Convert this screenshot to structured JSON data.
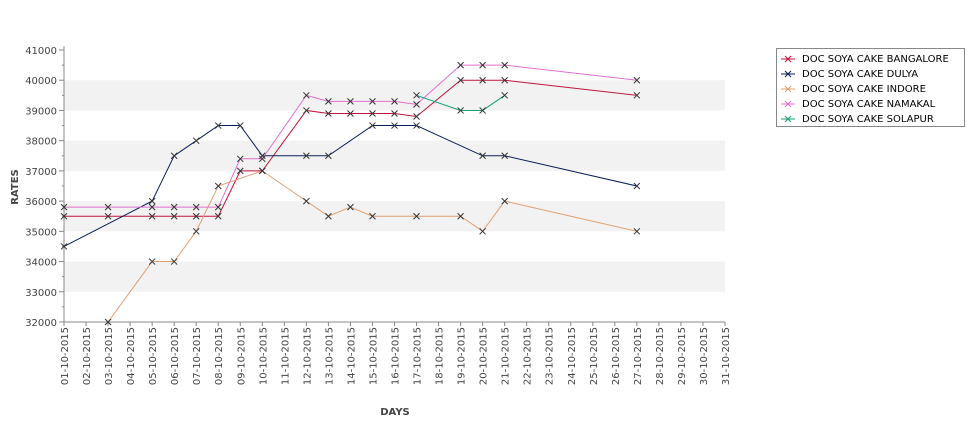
{
  "chart_data": {
    "type": "line",
    "xlabel": "DAYS",
    "ylabel": "RATES",
    "ylim": [
      32000,
      41000
    ],
    "yticks": [
      32000,
      33000,
      34000,
      35000,
      36000,
      37000,
      38000,
      39000,
      40000,
      41000
    ],
    "categories": [
      "01-10-2015",
      "02-10-2015",
      "03-10-2015",
      "04-10-2015",
      "05-10-2015",
      "06-10-2015",
      "07-10-2015",
      "08-10-2015",
      "09-10-2015",
      "10-10-2015",
      "11-10-2015",
      "12-10-2015",
      "13-10-2015",
      "14-10-2015",
      "15-10-2015",
      "16-10-2015",
      "17-10-2015",
      "18-10-2015",
      "19-10-2015",
      "20-10-2015",
      "21-10-2015",
      "22-10-2015",
      "23-10-2015",
      "24-10-2015",
      "25-10-2015",
      "26-10-2015",
      "27-10-2015",
      "28-10-2015",
      "29-10-2015",
      "30-10-2015",
      "31-10-2015"
    ],
    "grid": "horizontal alternating bands",
    "legend_position": "right",
    "marker": "x",
    "series": [
      {
        "name": "DOC SOYA CAKE BANGALORE",
        "color": "#c0143c",
        "points": [
          [
            "01-10-2015",
            35500
          ],
          [
            "03-10-2015",
            35500
          ],
          [
            "05-10-2015",
            35500
          ],
          [
            "06-10-2015",
            35500
          ],
          [
            "07-10-2015",
            35500
          ],
          [
            "08-10-2015",
            35500
          ],
          [
            "09-10-2015",
            37000
          ],
          [
            "10-10-2015",
            37000
          ],
          [
            "12-10-2015",
            39000
          ],
          [
            "13-10-2015",
            38900
          ],
          [
            "14-10-2015",
            38900
          ],
          [
            "15-10-2015",
            38900
          ],
          [
            "16-10-2015",
            38900
          ],
          [
            "17-10-2015",
            38800
          ],
          [
            "19-10-2015",
            40000
          ],
          [
            "20-10-2015",
            40000
          ],
          [
            "21-10-2015",
            40000
          ],
          [
            "27-10-2015",
            39500
          ]
        ]
      },
      {
        "name": "DOC SOYA CAKE DULYA",
        "color": "#0a1f55",
        "points": [
          [
            "01-10-2015",
            34500
          ],
          [
            "05-10-2015",
            36000
          ],
          [
            "06-10-2015",
            37500
          ],
          [
            "07-10-2015",
            38000
          ],
          [
            "08-10-2015",
            38500
          ],
          [
            "09-10-2015",
            38500
          ],
          [
            "10-10-2015",
            37500
          ],
          [
            "12-10-2015",
            37500
          ],
          [
            "13-10-2015",
            37500
          ],
          [
            "15-10-2015",
            38500
          ],
          [
            "16-10-2015",
            38500
          ],
          [
            "17-10-2015",
            38500
          ],
          [
            "20-10-2015",
            37500
          ],
          [
            "21-10-2015",
            37500
          ],
          [
            "27-10-2015",
            36500
          ]
        ]
      },
      {
        "name": "DOC SOYA CAKE INDORE",
        "color": "#e0a070",
        "points": [
          [
            "03-10-2015",
            32000
          ],
          [
            "05-10-2015",
            34000
          ],
          [
            "06-10-2015",
            34000
          ],
          [
            "07-10-2015",
            35000
          ],
          [
            "08-10-2015",
            36500
          ],
          [
            "10-10-2015",
            37000
          ],
          [
            "12-10-2015",
            36000
          ],
          [
            "13-10-2015",
            35500
          ],
          [
            "14-10-2015",
            35800
          ],
          [
            "15-10-2015",
            35500
          ],
          [
            "17-10-2015",
            35500
          ],
          [
            "19-10-2015",
            35500
          ],
          [
            "20-10-2015",
            35000
          ],
          [
            "21-10-2015",
            36000
          ],
          [
            "27-10-2015",
            35000
          ]
        ]
      },
      {
        "name": "DOC SOYA CAKE NAMAKAL",
        "color": "#e070d0",
        "points": [
          [
            "01-10-2015",
            35800
          ],
          [
            "03-10-2015",
            35800
          ],
          [
            "05-10-2015",
            35800
          ],
          [
            "06-10-2015",
            35800
          ],
          [
            "07-10-2015",
            35800
          ],
          [
            "08-10-2015",
            35800
          ],
          [
            "09-10-2015",
            37400
          ],
          [
            "10-10-2015",
            37400
          ],
          [
            "12-10-2015",
            39500
          ],
          [
            "13-10-2015",
            39300
          ],
          [
            "14-10-2015",
            39300
          ],
          [
            "15-10-2015",
            39300
          ],
          [
            "16-10-2015",
            39300
          ],
          [
            "17-10-2015",
            39200
          ],
          [
            "19-10-2015",
            40500
          ],
          [
            "20-10-2015",
            40500
          ],
          [
            "21-10-2015",
            40500
          ],
          [
            "27-10-2015",
            40000
          ]
        ]
      },
      {
        "name": "DOC SOYA CAKE SOLAPUR",
        "color": "#14a070",
        "points": [
          [
            "17-10-2015",
            39500
          ],
          [
            "19-10-2015",
            39000
          ],
          [
            "20-10-2015",
            39000
          ],
          [
            "21-10-2015",
            39500
          ]
        ]
      }
    ]
  }
}
